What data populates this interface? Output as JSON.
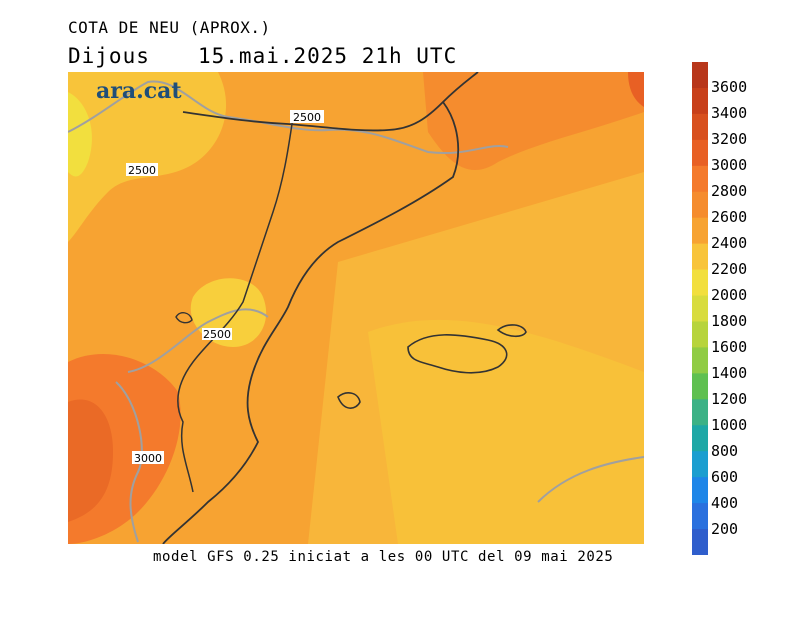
{
  "header": {
    "title": "COTA DE NEU (APROX.)",
    "day": "Dijous",
    "datetime": "15.mai.2025 21h UTC"
  },
  "logo": "ara.cat",
  "footer": "model GFS 0.25 iniciat a les 00 UTC del 09 mai 2025",
  "contour_labels": [
    "2500",
    "2500",
    "2500",
    "3000"
  ],
  "colorbar": {
    "labels": [
      "3600",
      "3400",
      "3200",
      "3000",
      "2800",
      "2600",
      "2400",
      "2200",
      "2000",
      "1800",
      "1600",
      "1400",
      "1200",
      "1000",
      "800",
      "600",
      "400",
      "200"
    ],
    "colors": [
      "#c8401a",
      "#d8501e",
      "#e86024",
      "#f47a2c",
      "#f58c2e",
      "#f7a332",
      "#f8c43a",
      "#f2df3e",
      "#d8dc3e",
      "#b7d43c",
      "#90cc44",
      "#5fc050",
      "#3cb286",
      "#1ea8a6",
      "#1b9ed0",
      "#1e86e8",
      "#2a70de",
      "#2f5ecc"
    ]
  },
  "legend_levels": {
    "background_level": "2600-2800",
    "colors": {
      "sea_fill": "#f8b63a",
      "land_fill": "#f7a332",
      "high_fill": "#f47a2c",
      "low_fill": "#f8cf3c",
      "border": "#333333",
      "contour": "#a0a0a0"
    }
  }
}
